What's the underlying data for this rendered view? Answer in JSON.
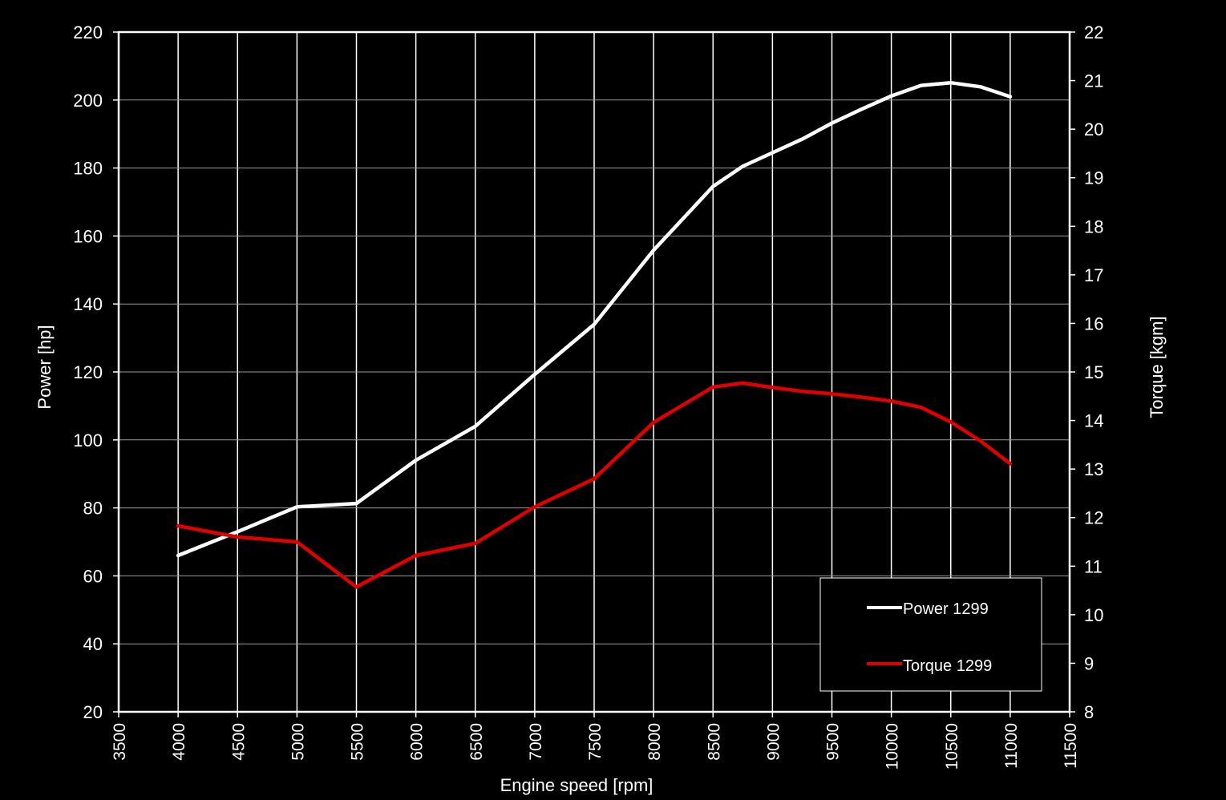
{
  "chart_data": {
    "type": "line",
    "xlabel": "Engine speed [rpm]",
    "ylabel_left": "Power [hp]",
    "ylabel_right": "Torque [kgm]",
    "xlim": [
      3500,
      11500
    ],
    "x_ticks": [
      3500,
      4000,
      4500,
      5000,
      5500,
      6000,
      6500,
      7000,
      7500,
      8000,
      8500,
      9000,
      9500,
      10000,
      10500,
      11000,
      11500
    ],
    "ylim_left": [
      20,
      220
    ],
    "y_ticks_left": [
      20,
      40,
      60,
      80,
      100,
      120,
      140,
      160,
      180,
      200,
      220
    ],
    "ylim_right": [
      8,
      22
    ],
    "y_ticks_right": [
      8,
      9,
      10,
      11,
      12,
      13,
      14,
      15,
      16,
      17,
      18,
      19,
      20,
      21,
      22
    ],
    "grid": true,
    "legend_position": "bottom-right",
    "background": "#000000",
    "series": [
      {
        "name": "Power 1299",
        "axis": "left",
        "color": "#ffffff",
        "x": [
          4000,
          4500,
          5000,
          5500,
          6000,
          6500,
          7000,
          7500,
          8000,
          8500,
          8750,
          9000,
          9250,
          9500,
          9750,
          10000,
          10250,
          10500,
          10750,
          11000
        ],
        "values": [
          66,
          73,
          80.3,
          81.3,
          94,
          104,
          119.3,
          134,
          155.8,
          174.6,
          180.5,
          184.5,
          188.5,
          193.2,
          197.3,
          201.2,
          204.3,
          205.1,
          203.9,
          201
        ]
      },
      {
        "name": "Torque 1299",
        "axis": "right",
        "color": "#e00000",
        "x": [
          4000,
          4500,
          5000,
          5500,
          6000,
          6500,
          7000,
          7500,
          8000,
          8500,
          8750,
          9000,
          9250,
          9500,
          9750,
          10000,
          10250,
          10500,
          10750,
          11000
        ],
        "values": [
          11.83,
          11.6,
          11.5,
          10.57,
          11.22,
          11.47,
          12.22,
          12.8,
          13.96,
          14.69,
          14.77,
          14.68,
          14.6,
          14.55,
          14.48,
          14.4,
          14.27,
          13.97,
          13.58,
          13.11
        ]
      }
    ]
  }
}
